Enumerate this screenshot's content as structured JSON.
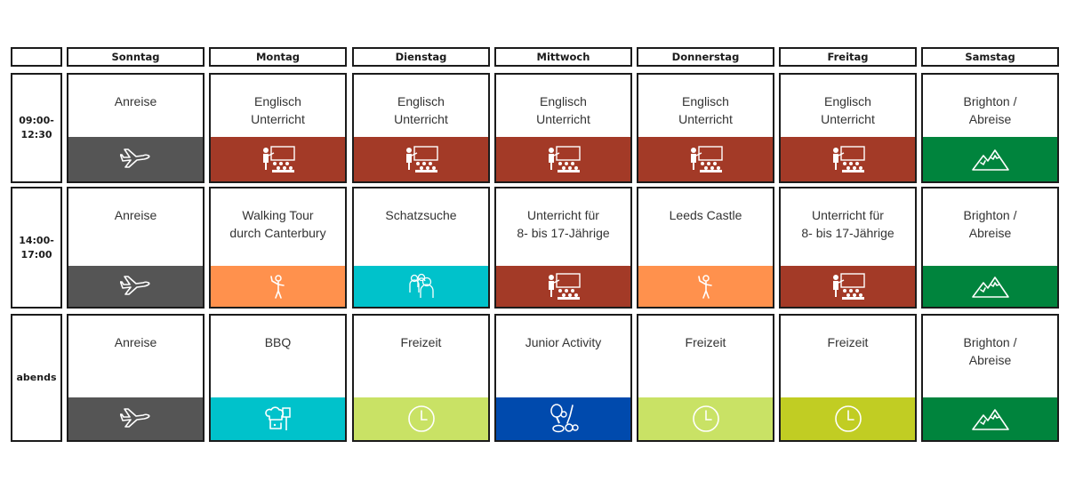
{
  "columns": [
    {
      "label": "Sonntag"
    },
    {
      "label": "Montag"
    },
    {
      "label": "Dienstag"
    },
    {
      "label": "Mittwoch"
    },
    {
      "label": "Donnerstag"
    },
    {
      "label": "Freitag"
    },
    {
      "label": "Samstag"
    }
  ],
  "rows": [
    {
      "time": "09:00-\n12:30",
      "cells": [
        {
          "text": "Anreise",
          "icon": "airplane-icon",
          "color": "#555555"
        },
        {
          "text": "Englisch\nUnterricht",
          "icon": "classroom-icon",
          "color": "#A33A27"
        },
        {
          "text": "Englisch\nUnterricht",
          "icon": "classroom-icon",
          "color": "#A33A27"
        },
        {
          "text": "Englisch\nUnterricht",
          "icon": "classroom-icon",
          "color": "#A33A27"
        },
        {
          "text": "Englisch\nUnterricht",
          "icon": "classroom-icon",
          "color": "#A33A27"
        },
        {
          "text": "Englisch\nUnterricht",
          "icon": "classroom-icon",
          "color": "#A33A27"
        },
        {
          "text": "Brighton /\nAbreise",
          "icon": "mountain-icon",
          "color": "#00843D"
        }
      ]
    },
    {
      "time": "14:00-\n17:00",
      "cells": [
        {
          "text": "Anreise",
          "icon": "airplane-icon",
          "color": "#555555"
        },
        {
          "text": "Walking Tour\ndurch Canterbury",
          "icon": "tour-guide-icon",
          "color": "#FF914D"
        },
        {
          "text": "Schatzsuche",
          "icon": "group-icon",
          "color": "#00C2CB"
        },
        {
          "text": "Unterricht für\n8- bis 17-Jährige",
          "icon": "classroom-icon",
          "color": "#A33A27"
        },
        {
          "text": "Leeds Castle",
          "icon": "tour-guide-icon",
          "color": "#FF914D"
        },
        {
          "text": "Unterricht für\n8- bis 17-Jährige",
          "icon": "classroom-icon",
          "color": "#A33A27"
        },
        {
          "text": "Brighton /\nAbreise",
          "icon": "mountain-icon",
          "color": "#00843D"
        }
      ]
    },
    {
      "time": "abends",
      "cells": [
        {
          "text": "Anreise",
          "icon": "airplane-icon",
          "color": "#555555"
        },
        {
          "text": "BBQ",
          "icon": "chef-icon",
          "color": "#00C2CB"
        },
        {
          "text": "Freizeit",
          "icon": "clock-icon",
          "color": "#C9E265"
        },
        {
          "text": "Junior Activity",
          "icon": "sports-icon",
          "color": "#004AAD"
        },
        {
          "text": "Freizeit",
          "icon": "clock-icon",
          "color": "#C9E265"
        },
        {
          "text": "Freizeit",
          "icon": "clock-icon",
          "color": "#C1CD23"
        },
        {
          "text": "Brighton /\nAbreise",
          "icon": "mountain-icon",
          "color": "#00843D"
        }
      ]
    }
  ]
}
